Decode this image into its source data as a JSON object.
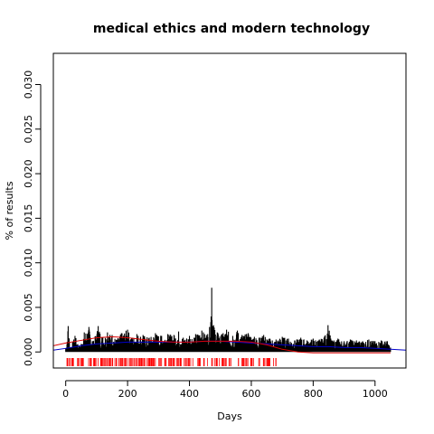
{
  "chart_data": {
    "type": "line",
    "title": "medical ethics and modern technology",
    "xlabel": "Days",
    "ylabel": "% of results",
    "xlim": [
      -40,
      1100
    ],
    "ylim": [
      -0.0018,
      0.0335
    ],
    "x_ticks": [
      0,
      200,
      400,
      600,
      800,
      1000
    ],
    "x_tick_labels": [
      "0",
      "200",
      "400",
      "600",
      "800",
      "1000"
    ],
    "y_ticks": [
      0,
      0.005,
      0.01,
      0.015,
      0.02,
      0.025,
      0.03
    ],
    "y_tick_labels": [
      "0.000",
      "0.005",
      "0.010",
      "0.015",
      "0.020",
      "0.025",
      "0.030"
    ],
    "grid": false,
    "series": [
      {
        "color": "#000000",
        "style": "spikes",
        "description_points": [
          [
            0,
            0.0004
          ],
          [
            8,
            0.0029
          ],
          [
            15,
            0.0005
          ],
          [
            30,
            0.0018
          ],
          [
            45,
            0.0006
          ],
          [
            60,
            0.0022
          ],
          [
            75,
            0.0028
          ],
          [
            90,
            0.0012
          ],
          [
            105,
            0.0029
          ],
          [
            120,
            0.0016
          ],
          [
            135,
            0.0022
          ],
          [
            150,
            0.0019
          ],
          [
            165,
            0.0014
          ],
          [
            180,
            0.0021
          ],
          [
            200,
            0.0025
          ],
          [
            215,
            0.0016
          ],
          [
            230,
            0.002
          ],
          [
            250,
            0.0019
          ],
          [
            270,
            0.0016
          ],
          [
            290,
            0.0021
          ],
          [
            310,
            0.0018
          ],
          [
            330,
            0.002
          ],
          [
            350,
            0.0019
          ],
          [
            365,
            0.0023
          ],
          [
            380,
            0.0016
          ],
          [
            400,
            0.0018
          ],
          [
            420,
            0.002
          ],
          [
            440,
            0.0024
          ],
          [
            455,
            0.0019
          ],
          [
            465,
            0.0028
          ],
          [
            472,
            0.0072
          ],
          [
            478,
            0.003
          ],
          [
            490,
            0.0022
          ],
          [
            505,
            0.002
          ],
          [
            520,
            0.0025
          ],
          [
            540,
            0.0018
          ],
          [
            555,
            0.0024
          ],
          [
            570,
            0.0019
          ],
          [
            590,
            0.0021
          ],
          [
            610,
            0.0017
          ],
          [
            625,
            0.0016
          ],
          [
            640,
            0.0019
          ],
          [
            660,
            0.0015
          ],
          [
            680,
            0.0014
          ],
          [
            700,
            0.0017
          ],
          [
            720,
            0.0015
          ],
          [
            740,
            0.0013
          ],
          [
            760,
            0.0016
          ],
          [
            780,
            0.0013
          ],
          [
            800,
            0.0015
          ],
          [
            820,
            0.0014
          ],
          [
            835,
            0.0016
          ],
          [
            848,
            0.003
          ],
          [
            860,
            0.0013
          ],
          [
            880,
            0.0015
          ],
          [
            900,
            0.0012
          ],
          [
            920,
            0.0014
          ],
          [
            940,
            0.0013
          ],
          [
            960,
            0.0012
          ],
          [
            980,
            0.0014
          ],
          [
            1000,
            0.0012
          ],
          [
            1020,
            0.0013
          ],
          [
            1040,
            0.0012
          ],
          [
            1050,
            0.0005
          ]
        ]
      },
      {
        "color": "#0000cc",
        "style": "line",
        "x": [
          -40,
          0,
          50,
          100,
          150,
          200,
          250,
          300,
          350,
          400,
          450,
          500,
          550,
          600,
          650,
          700,
          750,
          800,
          850,
          900,
          950,
          1000,
          1050,
          1100
        ],
        "y": [
          0.0002,
          0.0004,
          0.0007,
          0.0009,
          0.001,
          0.0011,
          0.0011,
          0.0011,
          0.0011,
          0.0011,
          0.0012,
          0.0012,
          0.0011,
          0.001,
          0.0009,
          0.0008,
          0.0007,
          0.0006,
          0.0006,
          0.0005,
          0.0005,
          0.0004,
          0.0003,
          0.0002
        ]
      },
      {
        "color": "#dd0000",
        "style": "line",
        "x": [
          -40,
          0,
          50,
          100,
          150,
          200,
          250,
          300,
          350,
          400,
          450,
          500,
          550,
          600,
          650,
          700,
          750,
          800,
          850,
          900,
          950,
          1000,
          1050
        ],
        "y": [
          0.0007,
          0.001,
          0.0013,
          0.0016,
          0.0017,
          0.0016,
          0.0014,
          0.0012,
          0.0011,
          0.0011,
          0.0012,
          0.0012,
          0.0012,
          0.0011,
          0.0008,
          0.0003,
          0.0,
          -0.0001,
          -0.0001,
          -0.0001,
          -0.0001,
          -0.0001,
          -0.0001
        ]
      }
    ],
    "rug": {
      "color": "#ff0000",
      "x_ranges": [
        [
          0,
          680
        ]
      ]
    }
  }
}
